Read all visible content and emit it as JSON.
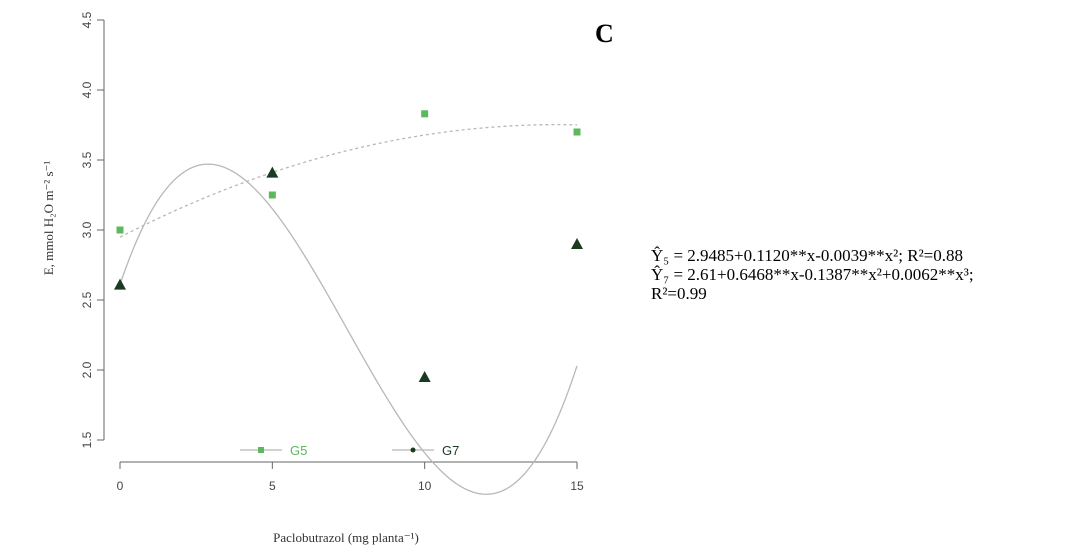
{
  "panel_label": "C",
  "equations": {
    "g5": "Ŷ₅ = 2.9485+0.1120**x-0.0039**x²; R²=0.88",
    "g7_line1": "Ŷ₇ = 2.61+0.6468**x-0.1387**x²+0.0062**x³;",
    "g7_line2": "R²=0.99"
  },
  "chart_data": {
    "type": "scatter",
    "title": "",
    "xlabel": "Paclobutrazol (mg planta⁻¹)",
    "ylabel": "E, mmol H₂O m⁻² s⁻¹",
    "xlim": [
      0,
      15
    ],
    "ylim": [
      1.5,
      4.5
    ],
    "x_ticks": [
      0,
      5,
      10,
      15
    ],
    "y_ticks": [
      1.5,
      2.0,
      2.5,
      3.0,
      3.5,
      4.0,
      4.5
    ],
    "x_tick_labels": [
      "0",
      "5",
      "10",
      "15"
    ],
    "y_tick_labels": [
      "1.5",
      "2.0",
      "2.5",
      "3.0",
      "3.5",
      "4.0",
      "4.5"
    ],
    "grid": false,
    "legend_position": "bottom",
    "series": [
      {
        "name": "G5",
        "marker": "square",
        "color": "#5cb85c",
        "x": [
          0,
          5,
          10,
          15
        ],
        "y": [
          3.0,
          3.25,
          3.83,
          3.7
        ],
        "fit": {
          "degree": 2,
          "coefficients": [
            2.9485,
            0.112,
            -0.0039
          ]
        }
      },
      {
        "name": "G7",
        "marker": "triangle",
        "color": "#1c3a22",
        "x": [
          0,
          5,
          10,
          15
        ],
        "y": [
          2.61,
          3.41,
          1.95,
          2.9
        ],
        "fit": {
          "degree": 3,
          "coefficients": [
            2.61,
            0.6468,
            -0.1387,
            0.0062
          ]
        }
      }
    ]
  }
}
